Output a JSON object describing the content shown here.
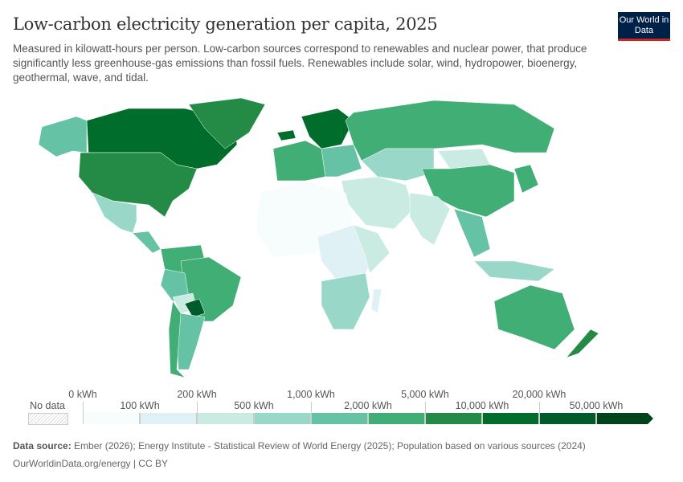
{
  "header": {
    "title": "Low-carbon electricity generation per capita, 2025",
    "subtitle": "Measured in kilowatt-hours per person. Low-carbon sources correspond to renewables and nuclear power, that produce significantly less greenhouse-gas emissions than fossil fuels. Renewables include solar, wind, hydropower, bioenergy, geothermal, wave, and tidal.",
    "logo": "Our World in Data"
  },
  "legend": {
    "no_data_label": "No data",
    "upper_labels": [
      "0 kWh",
      "200 kWh",
      "1,000 kWh",
      "5,000 kWh",
      "20,000 kWh"
    ],
    "lower_labels": [
      "100 kWh",
      "500 kWh",
      "2,000 kWh",
      "10,000 kWh",
      "50,000 kWh"
    ],
    "colors": [
      "#f7fcfd",
      "#e0f1f6",
      "#c9ebe2",
      "#99d8c9",
      "#66c2a4",
      "#41ae76",
      "#238b45",
      "#006d2c",
      "#005a2a",
      "#00441b"
    ]
  },
  "footer": {
    "source_label": "Data source:",
    "source": " Ember (2026); Energy Institute - Statistical Review of World Energy (2025); Population based on various sources (2024)",
    "url": "OurWorldinData.org/energy | CC BY"
  }
}
